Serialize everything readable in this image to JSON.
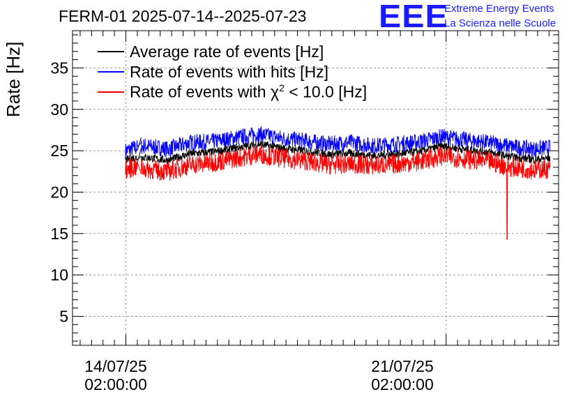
{
  "title": "FERM-01 2025-07-14--2025-07-23",
  "logo": {
    "mark": "EEE",
    "line1": "Extreme Energy Events",
    "line2": "La Scienza nelle Scuole",
    "color": "#1a1aff"
  },
  "chart_data": {
    "type": "line",
    "title": "FERM-01 2025-07-14--2025-07-23",
    "ylabel": "Rate [Hz]",
    "xlabel": "",
    "x_axis": "time",
    "xlim": [
      "2025-07-12 22:00",
      "2025-07-23 13:00"
    ],
    "ylim": [
      1.5,
      39.5
    ],
    "y_ticks": [
      5,
      10,
      15,
      20,
      25,
      30,
      35
    ],
    "x_ticks": [
      {
        "time": "2025-07-14 02:00:00",
        "date_label": "14/07/25",
        "time_label": "02:00:00"
      },
      {
        "time": "2025-07-21 02:00:00",
        "date_label": "21/07/25",
        "time_label": "02:00:00"
      }
    ],
    "grid": true,
    "legend_position": "top-left",
    "data_start": "2025-07-14 01:45",
    "data_end": "2025-07-23 08:30",
    "gap": [
      "2025-07-14 08:00",
      "2025-07-14 10:00"
    ],
    "series": [
      {
        "name": "Average rate of events [Hz]",
        "color": "#000000",
        "approx_mean": 24.6,
        "jitter": 0.5
      },
      {
        "name": "Rate of events with hits [Hz]",
        "color": "#0000ff",
        "time": [
          "2025-07-14 02:00",
          "2025-07-14 06:00",
          "2025-07-14 12:00",
          "2025-07-15 00:00",
          "2025-07-15 12:00",
          "2025-07-16 00:00",
          "2025-07-16 12:00",
          "2025-07-17 00:00",
          "2025-07-17 12:00",
          "2025-07-18 00:00",
          "2025-07-18 12:00",
          "2025-07-19 00:00",
          "2025-07-19 12:00",
          "2025-07-20 00:00",
          "2025-07-20 12:00",
          "2025-07-21 00:00",
          "2025-07-21 12:00",
          "2025-07-22 00:00",
          "2025-07-22 12:00",
          "2025-07-23 00:00",
          "2025-07-23 08:00"
        ],
        "values": [
          25.0,
          25.3,
          25.6,
          25.2,
          26.0,
          26.1,
          26.6,
          27.0,
          26.5,
          26.2,
          25.8,
          26.0,
          25.6,
          25.8,
          26.1,
          26.7,
          26.3,
          26.0,
          25.5,
          25.2,
          25.4
        ],
        "jitter": 1.0
      },
      {
        "name": "Rate of events with χ² < 10.0 [Hz]",
        "name_parts": [
          "Rate of events with χ",
          "2",
          " < 10.0 [Hz]"
        ],
        "color": "#ff0000",
        "time": [
          "2025-07-14 02:00",
          "2025-07-14 06:00",
          "2025-07-14 12:00",
          "2025-07-15 00:00",
          "2025-07-15 12:00",
          "2025-07-16 00:00",
          "2025-07-16 12:00",
          "2025-07-17 00:00",
          "2025-07-17 12:00",
          "2025-07-18 00:00",
          "2025-07-18 12:00",
          "2025-07-19 00:00",
          "2025-07-19 12:00",
          "2025-07-20 00:00",
          "2025-07-20 12:00",
          "2025-07-21 00:00",
          "2025-07-21 12:00",
          "2025-07-22 00:00",
          "2025-07-22 12:00",
          "2025-07-23 00:00",
          "2025-07-23 08:00"
        ],
        "values": [
          22.7,
          23.0,
          22.8,
          22.5,
          23.3,
          23.6,
          24.1,
          24.6,
          24.1,
          23.8,
          23.3,
          23.4,
          23.2,
          23.4,
          23.7,
          24.4,
          24.0,
          23.7,
          23.0,
          22.7,
          22.8
        ],
        "jitter": 1.2,
        "dip": {
          "time": "2025-07-22 10:00",
          "value": 14.3
        }
      }
    ]
  }
}
